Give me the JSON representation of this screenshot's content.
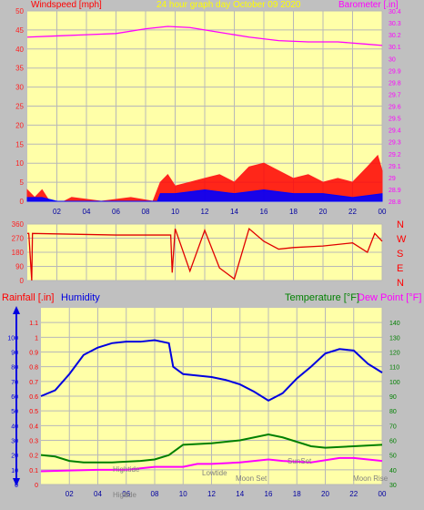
{
  "colors": {
    "background": "#c0c0c0",
    "plot": "#ffffa8",
    "grid": "#b8b8b8",
    "wind": "#ff2020",
    "gust_fill": "#ff0000",
    "avg_wind": "#0000ff",
    "low_wind": "#00a000",
    "barometer": "#ff00ff",
    "direction": "#e00000",
    "humidity": "#0000e0",
    "temperature": "#008000",
    "dewpoint": "#ff00ff",
    "rain": "#ff0000",
    "title": "#ffff00",
    "event": "#808080"
  },
  "header": {
    "left_title": "Windspeed [mph]",
    "center_title": "24 hour graph day  October 09 2020",
    "right_title": "Barometer [.in]"
  },
  "lower_header": {
    "rainfall": "Rainfall [.in]",
    "humidity": "Humidity",
    "temperature": "Temperature [°F]",
    "dewpoint": "Dew Point [°F]"
  },
  "time_ticks": [
    "02",
    "04",
    "06",
    "08",
    "10",
    "12",
    "14",
    "16",
    "18",
    "20",
    "22",
    "00"
  ],
  "compass": [
    "N",
    "W",
    "S",
    "E",
    "N"
  ],
  "events": {
    "hightide": "Hightide",
    "lowtide": "Lowtide",
    "moonset": "Moon Set",
    "sunset": "SunSet",
    "moonrise": "Moon Rise",
    "bottom1": "High",
    "bottom2": "tide"
  },
  "chart_data": [
    {
      "type": "line",
      "title": "24 hour graph day  October 09 2020",
      "ylabel": "Windspeed [mph]",
      "y2label": "Barometer [.in]",
      "x": "hour 0-24",
      "ylim": [
        0,
        50
      ],
      "y2lim": [
        28.8,
        30.4
      ],
      "yticks": [
        "0",
        "5",
        "10",
        "15",
        "20",
        "25",
        "30",
        "35",
        "40",
        "45",
        "50"
      ],
      "y2ticks": [
        "28.8",
        "28.9",
        "29",
        "29.1",
        "29.2",
        "29.3",
        "29.4",
        "29.5",
        "29.6",
        "29.7",
        "29.8",
        "29.9",
        "30",
        "30.1",
        "30.2",
        "30.3",
        "30.4"
      ],
      "series": [
        {
          "name": "Barometer [.in]",
          "points": [
            [
              0,
              30.18
            ],
            [
              2,
              30.19
            ],
            [
              4,
              30.2
            ],
            [
              6,
              30.21
            ],
            [
              8,
              30.25
            ],
            [
              9.5,
              30.27
            ],
            [
              11,
              30.26
            ],
            [
              13,
              30.22
            ],
            [
              15,
              30.18
            ],
            [
              17,
              30.15
            ],
            [
              19,
              30.14
            ],
            [
              21,
              30.14
            ],
            [
              23,
              30.12
            ],
            [
              24,
              30.11
            ]
          ]
        },
        {
          "name": "Gust",
          "points": [
            [
              0,
              3
            ],
            [
              0.5,
              1
            ],
            [
              1,
              3
            ],
            [
              1.5,
              0
            ],
            [
              2.5,
              0
            ],
            [
              3,
              1
            ],
            [
              5,
              0
            ],
            [
              7,
              1
            ],
            [
              8.5,
              0
            ],
            [
              9,
              5
            ],
            [
              9.5,
              7
            ],
            [
              10,
              4
            ],
            [
              11,
              5
            ],
            [
              12,
              6
            ],
            [
              13,
              7
            ],
            [
              14,
              5
            ],
            [
              15,
              9
            ],
            [
              16,
              10
            ],
            [
              17,
              8
            ],
            [
              18,
              6
            ],
            [
              19,
              7
            ],
            [
              20,
              5
            ],
            [
              21,
              6
            ],
            [
              22,
              5
            ],
            [
              23,
              9
            ],
            [
              23.7,
              12
            ],
            [
              24,
              8
            ]
          ]
        },
        {
          "name": "Average",
          "points": [
            [
              0,
              1
            ],
            [
              1,
              1
            ],
            [
              2,
              0
            ],
            [
              8.8,
              0
            ],
            [
              9,
              2
            ],
            [
              10,
              2
            ],
            [
              12,
              3
            ],
            [
              14,
              2
            ],
            [
              16,
              3
            ],
            [
              18,
              2
            ],
            [
              20,
              2
            ],
            [
              22,
              1
            ],
            [
              24,
              2
            ]
          ]
        }
      ]
    },
    {
      "type": "line",
      "ylabel": "Wind direction",
      "ylim": [
        0,
        360
      ],
      "yticks": [
        "0",
        "90",
        "180",
        "270",
        "360"
      ],
      "series": [
        {
          "name": "Direction",
          "points": [
            [
              0,
              300
            ],
            [
              0.1,
              300
            ],
            [
              0.3,
              0
            ],
            [
              0.35,
              300
            ],
            [
              6,
              290
            ],
            [
              9.7,
              290
            ],
            [
              9.8,
              50
            ],
            [
              10,
              330
            ],
            [
              11,
              60
            ],
            [
              12,
              320
            ],
            [
              13,
              80
            ],
            [
              14,
              10
            ],
            [
              15,
              330
            ],
            [
              16,
              250
            ],
            [
              17,
              200
            ],
            [
              18,
              210
            ],
            [
              20,
              220
            ],
            [
              22,
              240
            ],
            [
              23,
              180
            ],
            [
              23.5,
              300
            ],
            [
              24,
              250
            ]
          ]
        }
      ]
    },
    {
      "type": "line",
      "ylabel": "Rainfall [.in] / Humidity",
      "y2label": "Temperature [°F] / Dew Point [°F]",
      "ylim": [
        0,
        1.2
      ],
      "y2lim": [
        30,
        150
      ],
      "yticks": [
        "0",
        "0.1",
        "0.2",
        "0.3",
        "0.4",
        "0.5",
        "0.6",
        "0.7",
        "0.8",
        "0.9",
        "1",
        "1.1"
      ],
      "hum_ticks": [
        "0",
        "10",
        "20",
        "30",
        "40",
        "50",
        "60",
        "70",
        "80",
        "90",
        "100"
      ],
      "y2ticks": [
        "30",
        "40",
        "50",
        "60",
        "70",
        "80",
        "90",
        "100",
        "110",
        "120",
        "130",
        "140"
      ],
      "series": [
        {
          "name": "Humidity",
          "points": [
            [
              0,
              60
            ],
            [
              1,
              64
            ],
            [
              2,
              75
            ],
            [
              3,
              88
            ],
            [
              4,
              93
            ],
            [
              5,
              96
            ],
            [
              6,
              97
            ],
            [
              7,
              97
            ],
            [
              8,
              98
            ],
            [
              9,
              96
            ],
            [
              9.3,
              80
            ],
            [
              10,
              75
            ],
            [
              11,
              74
            ],
            [
              12,
              73
            ],
            [
              13,
              71
            ],
            [
              14,
              68
            ],
            [
              15,
              63
            ],
            [
              16,
              57
            ],
            [
              17,
              62
            ],
            [
              18,
              72
            ],
            [
              19,
              80
            ],
            [
              20,
              89
            ],
            [
              21,
              92
            ],
            [
              22,
              91
            ],
            [
              23,
              82
            ],
            [
              23.5,
              79
            ],
            [
              24,
              76
            ]
          ]
        },
        {
          "name": "Temperature [°F]",
          "points": [
            [
              0,
              50
            ],
            [
              1,
              49
            ],
            [
              2,
              46
            ],
            [
              3,
              45
            ],
            [
              5,
              45
            ],
            [
              7,
              46
            ],
            [
              8,
              47
            ],
            [
              9,
              50
            ],
            [
              10,
              57
            ],
            [
              12,
              58
            ],
            [
              14,
              60
            ],
            [
              16,
              64
            ],
            [
              17,
              62
            ],
            [
              19,
              56
            ],
            [
              20,
              55
            ],
            [
              22,
              56
            ],
            [
              24,
              57
            ]
          ]
        },
        {
          "name": "Dew Point [°F]",
          "points": [
            [
              0,
              39
            ],
            [
              2,
              39.5
            ],
            [
              4,
              40
            ],
            [
              6,
              40
            ],
            [
              8,
              42
            ],
            [
              10,
              42
            ],
            [
              11,
              44
            ],
            [
              12,
              44
            ],
            [
              14,
              45
            ],
            [
              16,
              47
            ],
            [
              17,
              46
            ],
            [
              19,
              45
            ],
            [
              21,
              48
            ],
            [
              22,
              48
            ],
            [
              24,
              46
            ]
          ]
        }
      ]
    }
  ]
}
